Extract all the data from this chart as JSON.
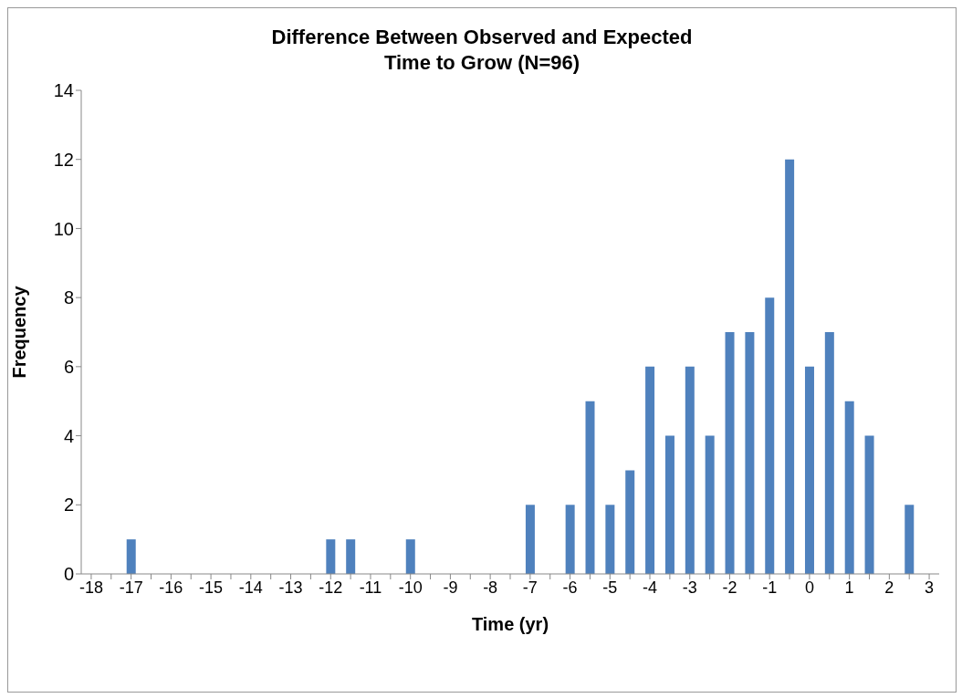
{
  "chart_data": {
    "type": "bar",
    "title": "Difference Between Observed and Expected\nTime to Grow (N=96)",
    "xlabel": "Time (yr)",
    "ylabel": "Frequency",
    "categories": [
      "-18",
      null,
      "-17",
      null,
      "-16",
      null,
      "-15",
      null,
      "-14",
      null,
      "-13",
      null,
      "-12",
      null,
      "-11",
      null,
      "-10",
      null,
      "-9",
      null,
      "-8",
      null,
      "-7",
      null,
      "-6",
      null,
      "-5",
      null,
      "-4",
      null,
      "-3",
      null,
      "-2",
      null,
      "-1",
      null,
      "0",
      null,
      "1",
      null,
      "2",
      null,
      "3"
    ],
    "values": [
      0,
      0,
      1,
      0,
      0,
      0,
      0,
      0,
      0,
      0,
      0,
      0,
      1,
      1,
      0,
      0,
      1,
      0,
      0,
      0,
      0,
      0,
      2,
      0,
      2,
      5,
      2,
      3,
      6,
      4,
      6,
      4,
      7,
      7,
      8,
      12,
      6,
      7,
      5,
      4,
      0,
      2,
      0
    ],
    "color": "#4f81bd",
    "ylim": [
      0,
      14
    ],
    "yticks": [
      0,
      2,
      4,
      6,
      8,
      10,
      12,
      14
    ],
    "grid": false
  }
}
